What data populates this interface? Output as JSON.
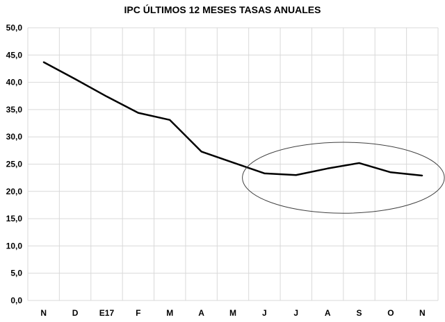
{
  "chart_data": {
    "type": "line",
    "title": "IPC ÚLTIMOS  12 MESES TASAS ANUALES",
    "categories": [
      "N",
      "D",
      "E17",
      "F",
      "M",
      "A",
      "M",
      "J",
      "J",
      "A",
      "S",
      "O",
      "N"
    ],
    "series": [
      {
        "values": [
          43.7,
          40.6,
          37.4,
          34.4,
          33.1,
          27.3,
          25.3,
          23.3,
          23.0,
          24.2,
          25.2,
          23.5,
          22.9
        ]
      }
    ],
    "ylim": [
      0,
      50
    ],
    "yticks": [
      "0,0",
      "5,0",
      "10,0",
      "15,0",
      "20,0",
      "25,0",
      "30,0",
      "35,0",
      "40,0",
      "45,0",
      "50,0"
    ],
    "grid": true,
    "legend": "none",
    "highlight": {
      "shape": "ellipse",
      "x_from": "J",
      "x_to": "N",
      "y_from": 16,
      "y_to": 29
    },
    "colors": {
      "line": "#000000",
      "grid": "#d9d9d9",
      "highlight": "#404040"
    }
  }
}
